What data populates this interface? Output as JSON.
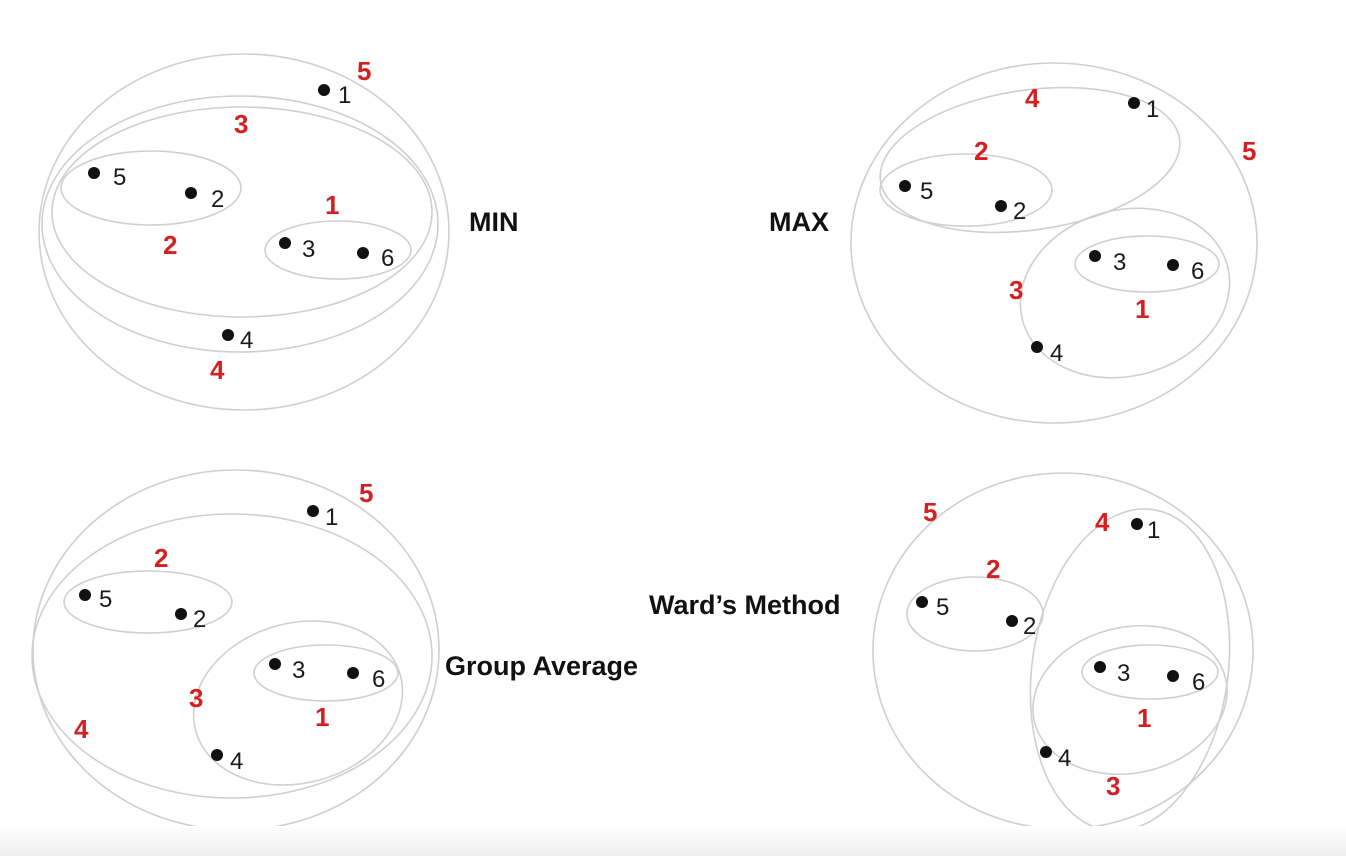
{
  "colors": {
    "merge_order": "#d42020",
    "point": "#111111",
    "ring": "#cfcfcf"
  },
  "panels": [
    {
      "title": "MIN",
      "points": [
        {
          "label": "1"
        },
        {
          "label": "5"
        },
        {
          "label": "2"
        },
        {
          "label": "3"
        },
        {
          "label": "6"
        },
        {
          "label": "4"
        }
      ],
      "merge_labels": [
        "5",
        "3",
        "2",
        "1",
        "4"
      ]
    },
    {
      "title": "MAX",
      "points": [
        {
          "label": "1"
        },
        {
          "label": "5"
        },
        {
          "label": "2"
        },
        {
          "label": "3"
        },
        {
          "label": "6"
        },
        {
          "label": "4"
        }
      ],
      "merge_labels": [
        "4",
        "2",
        "5",
        "3",
        "1"
      ]
    },
    {
      "title": "Group Average",
      "points": [
        {
          "label": "1"
        },
        {
          "label": "5"
        },
        {
          "label": "2"
        },
        {
          "label": "3"
        },
        {
          "label": "6"
        },
        {
          "label": "4"
        }
      ],
      "merge_labels": [
        "5",
        "2",
        "3",
        "1",
        "4"
      ]
    },
    {
      "title": "Ward’s Method",
      "points": [
        {
          "label": "1"
        },
        {
          "label": "5"
        },
        {
          "label": "2"
        },
        {
          "label": "3"
        },
        {
          "label": "6"
        },
        {
          "label": "4"
        }
      ],
      "merge_labels": [
        "5",
        "4",
        "2",
        "1",
        "3"
      ]
    }
  ]
}
